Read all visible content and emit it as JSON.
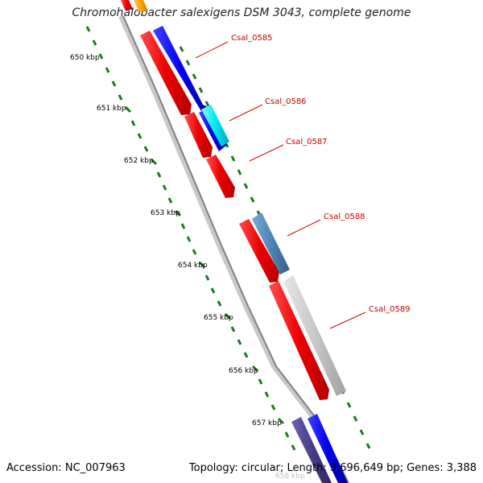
{
  "title": "Chromohalobacter salexigens DSM 3043, complete genome",
  "footer": {
    "accession_label": "Accession:",
    "accession": "NC_007963",
    "topology_text": "Topology: circular; Length: 3,696,649 bp; Genes: 3,388"
  },
  "ticks": [
    {
      "label": "650 kbp"
    },
    {
      "label": "651 kbp"
    },
    {
      "label": "652 kbp"
    },
    {
      "label": "653 kbp"
    },
    {
      "label": "654 kbp"
    },
    {
      "label": "655 kbp"
    },
    {
      "label": "656 kbp"
    },
    {
      "label": "657 kbp"
    },
    {
      "label": "658 kbp"
    }
  ],
  "gene_labels": [
    "Csal_0585",
    "Csal_0586",
    "Csal_0587",
    "Csal_0588",
    "Csal_0589"
  ],
  "colors": {
    "forward_cds": "#ff0000",
    "reverse_blue": "#0000ff",
    "cyan": "#00ffff",
    "steel_blue": "#4f86b8",
    "gray": "#c8c8c8",
    "dark_purple": "#483d8b",
    "orange": "#ffa500",
    "backbone": "#808080",
    "tick_green": "#006400",
    "label_red": "#cc0000"
  }
}
